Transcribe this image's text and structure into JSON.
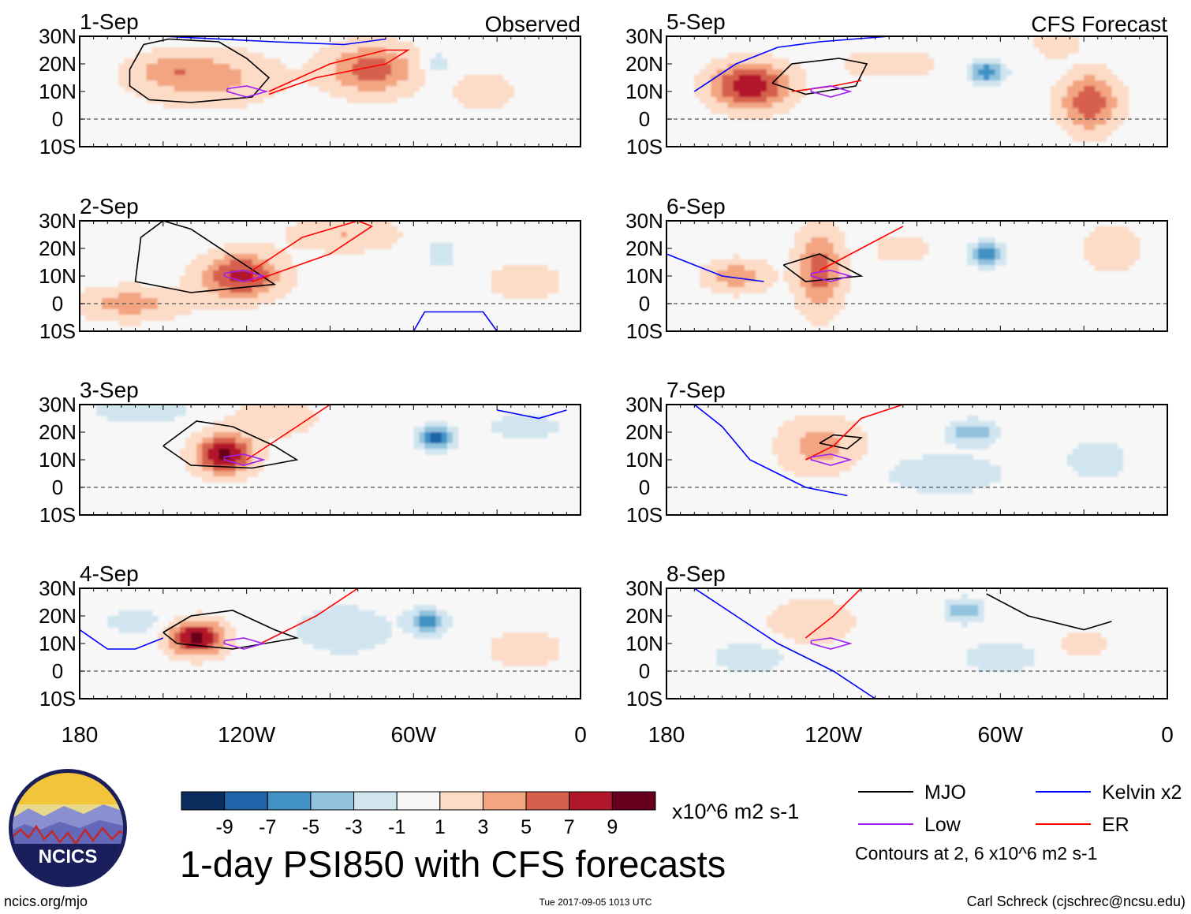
{
  "chart_data": {
    "type": "heatmap",
    "title": "1-day PSI850 with CFS forecasts",
    "variable": "PSI850",
    "units": "x10^6 m2 s-1",
    "columns": [
      {
        "heading": "Observed"
      },
      {
        "heading": "CFS Forecast"
      }
    ],
    "panels": [
      {
        "date": "1-Sep",
        "source": "Observed"
      },
      {
        "date": "2-Sep",
        "source": "Observed"
      },
      {
        "date": "3-Sep",
        "source": "Observed"
      },
      {
        "date": "4-Sep",
        "source": "Observed"
      },
      {
        "date": "5-Sep",
        "source": "CFS Forecast"
      },
      {
        "date": "6-Sep",
        "source": "CFS Forecast"
      },
      {
        "date": "7-Sep",
        "source": "CFS Forecast"
      },
      {
        "date": "8-Sep",
        "source": "CFS Forecast"
      }
    ],
    "x_axis": {
      "range": [
        -180,
        0
      ],
      "ticks": [
        -180,
        -120,
        -60,
        0
      ],
      "tick_labels": [
        "180",
        "120W",
        "60W",
        "0"
      ]
    },
    "y_axis": {
      "range": [
        -10,
        30
      ],
      "ticks": [
        30,
        20,
        10,
        0,
        -10
      ],
      "tick_labels": [
        "30N",
        "20N",
        "10N",
        "0",
        "10S"
      ]
    },
    "colorbar": {
      "levels": [
        -9,
        -7,
        -5,
        -3,
        -1,
        1,
        3,
        5,
        7,
        9
      ],
      "labels": [
        "-9",
        "-7",
        "-5",
        "-3",
        "-1",
        "1",
        "3",
        "5",
        "7",
        "9"
      ],
      "colors": [
        "#0b2d5e",
        "#1f63a8",
        "#4291c4",
        "#91c2de",
        "#d1e5f0",
        "#f7f7f7",
        "#fcdbc7",
        "#f3a481",
        "#d6604d",
        "#b2182b",
        "#67001f"
      ]
    },
    "legend": [
      {
        "label": "MJO",
        "color": "#000000"
      },
      {
        "label": "Kelvin x2",
        "color": "#0000ff"
      },
      {
        "label": "Low",
        "color": "#a020f0"
      },
      {
        "label": "ER",
        "color": "#ff0000"
      }
    ],
    "contour_note": "Contours at 2, 6 x10^6 m2 s-1",
    "anomaly_centers": [
      [
        [
          -75,
          18,
          6,
          16,
          9
        ],
        [
          -135,
          15,
          4,
          25,
          10
        ],
        [
          -35,
          10,
          3,
          10,
          6
        ],
        [
          -52,
          20,
          -3,
          5,
          4
        ],
        [
          -148,
          18,
          2,
          12,
          5
        ]
      ],
      [
        [
          -122,
          10,
          8,
          14,
          8
        ],
        [
          -162,
          0,
          4,
          20,
          6
        ],
        [
          -85,
          25,
          3,
          20,
          6
        ],
        [
          -50,
          18,
          -3,
          5,
          4
        ],
        [
          -20,
          8,
          2,
          15,
          8
        ]
      ],
      [
        [
          -128,
          12,
          10,
          10,
          7
        ],
        [
          -52,
          18,
          -8,
          6,
          4
        ],
        [
          -158,
          28,
          -2,
          20,
          5
        ],
        [
          -20,
          22,
          -2,
          15,
          5
        ],
        [
          -110,
          25,
          3,
          15,
          6
        ]
      ],
      [
        [
          -138,
          12,
          10,
          10,
          6
        ],
        [
          -55,
          18,
          -7,
          6,
          4
        ],
        [
          -85,
          15,
          -2,
          20,
          10
        ],
        [
          -20,
          8,
          3,
          12,
          6
        ],
        [
          -160,
          18,
          -2,
          12,
          5
        ]
      ],
      [
        [
          -150,
          12,
          9,
          14,
          8
        ],
        [
          -65,
          17,
          -7,
          6,
          4
        ],
        [
          -28,
          6,
          7,
          10,
          10
        ],
        [
          -100,
          20,
          2,
          20,
          6
        ],
        [
          -40,
          28,
          3,
          8,
          5
        ]
      ],
      [
        [
          -125,
          12,
          6,
          8,
          15
        ],
        [
          -155,
          10,
          4,
          12,
          6
        ],
        [
          -65,
          18,
          -6,
          6,
          4
        ],
        [
          -20,
          20,
          3,
          10,
          8
        ],
        [
          -95,
          20,
          2,
          12,
          6
        ]
      ],
      [
        [
          -125,
          15,
          4,
          15,
          10
        ],
        [
          -70,
          20,
          -5,
          8,
          4
        ],
        [
          -80,
          5,
          -2,
          25,
          8
        ],
        [
          -25,
          10,
          -2,
          12,
          8
        ],
        [
          -155,
          15,
          -1,
          12,
          6
        ]
      ],
      [
        [
          -128,
          18,
          3,
          15,
          8
        ],
        [
          -73,
          22,
          -5,
          6,
          4
        ],
        [
          -150,
          5,
          -2,
          15,
          6
        ],
        [
          -30,
          10,
          2,
          10,
          6
        ],
        [
          -60,
          5,
          -2,
          15,
          6
        ]
      ]
    ],
    "contour_paths": [
      {
        "panel": 0,
        "type": "MJO",
        "pts": [
          [
            -162,
            18
          ],
          [
            -157,
            27
          ],
          [
            -148,
            29
          ],
          [
            -130,
            28
          ],
          [
            -120,
            22
          ],
          [
            -112,
            15
          ],
          [
            -118,
            8
          ],
          [
            -140,
            6
          ],
          [
            -155,
            7
          ],
          [
            -162,
            12
          ],
          [
            -162,
            18
          ]
        ]
      },
      {
        "panel": 0,
        "type": "ER",
        "pts": [
          [
            -112,
            10
          ],
          [
            -90,
            20
          ],
          [
            -70,
            25
          ],
          [
            -62,
            25
          ],
          [
            -70,
            20
          ],
          [
            -95,
            15
          ],
          [
            -112,
            9
          ]
        ]
      },
      {
        "panel": 0,
        "type": "Kelvin x2",
        "pts": [
          [
            -150,
            30
          ],
          [
            -110,
            28
          ],
          [
            -85,
            27
          ],
          [
            -70,
            29
          ]
        ]
      },
      {
        "panel": 0,
        "type": "Low",
        "pts": [
          [
            -127,
            11
          ],
          [
            -120,
            12
          ],
          [
            -113,
            10
          ],
          [
            -120,
            8
          ],
          [
            -127,
            10
          ],
          [
            -127,
            11
          ]
        ]
      },
      {
        "panel": 1,
        "type": "MJO",
        "pts": [
          [
            -158,
            24
          ],
          [
            -150,
            30
          ],
          [
            -140,
            27
          ],
          [
            -125,
            17
          ],
          [
            -110,
            7
          ],
          [
            -140,
            4
          ],
          [
            -160,
            8
          ],
          [
            -158,
            24
          ]
        ]
      },
      {
        "panel": 1,
        "type": "ER",
        "pts": [
          [
            -118,
            8
          ],
          [
            -90,
            18
          ],
          [
            -75,
            28
          ],
          [
            -80,
            30
          ],
          [
            -100,
            24
          ],
          [
            -118,
            12
          ],
          [
            -118,
            8
          ]
        ]
      },
      {
        "panel": 1,
        "type": "Kelvin x2",
        "pts": [
          [
            -60,
            -10
          ],
          [
            -56,
            -3
          ],
          [
            -35,
            -3
          ],
          [
            -30,
            -10
          ]
        ]
      },
      {
        "panel": 1,
        "type": "Low",
        "pts": [
          [
            -128,
            11
          ],
          [
            -121,
            12
          ],
          [
            -114,
            10
          ],
          [
            -121,
            8
          ],
          [
            -128,
            10
          ],
          [
            -128,
            11
          ]
        ]
      },
      {
        "panel": 2,
        "type": "MJO",
        "pts": [
          [
            -150,
            15
          ],
          [
            -138,
            24
          ],
          [
            -125,
            22
          ],
          [
            -110,
            15
          ],
          [
            -102,
            10
          ],
          [
            -118,
            7
          ],
          [
            -140,
            8
          ],
          [
            -150,
            15
          ]
        ]
      },
      {
        "panel": 2,
        "type": "ER",
        "pts": [
          [
            -120,
            10
          ],
          [
            -105,
            20
          ],
          [
            -90,
            30
          ]
        ]
      },
      {
        "panel": 2,
        "type": "Kelvin x2",
        "pts": [
          [
            -30,
            28
          ],
          [
            -15,
            25
          ],
          [
            -5,
            28
          ]
        ]
      },
      {
        "panel": 2,
        "type": "Low",
        "pts": [
          [
            -128,
            11
          ],
          [
            -121,
            12
          ],
          [
            -114,
            10
          ],
          [
            -121,
            8
          ],
          [
            -128,
            10
          ],
          [
            -128,
            11
          ]
        ]
      },
      {
        "panel": 3,
        "type": "MJO",
        "pts": [
          [
            -150,
            14
          ],
          [
            -140,
            20
          ],
          [
            -125,
            22
          ],
          [
            -110,
            15
          ],
          [
            -102,
            12
          ],
          [
            -125,
            8
          ],
          [
            -145,
            10
          ],
          [
            -150,
            14
          ]
        ]
      },
      {
        "panel": 3,
        "type": "ER",
        "pts": [
          [
            -115,
            10
          ],
          [
            -95,
            20
          ],
          [
            -80,
            30
          ]
        ]
      },
      {
        "panel": 3,
        "type": "Kelvin x2",
        "pts": [
          [
            -180,
            15
          ],
          [
            -170,
            8
          ],
          [
            -160,
            8
          ],
          [
            -150,
            12
          ]
        ]
      },
      {
        "panel": 3,
        "type": "Low",
        "pts": [
          [
            -128,
            11
          ],
          [
            -121,
            12
          ],
          [
            -114,
            10
          ],
          [
            -121,
            8
          ],
          [
            -128,
            10
          ],
          [
            -128,
            11
          ]
        ]
      },
      {
        "panel": 4,
        "type": "MJO",
        "pts": [
          [
            -142,
            13
          ],
          [
            -135,
            20
          ],
          [
            -118,
            22
          ],
          [
            -108,
            20
          ],
          [
            -112,
            12
          ],
          [
            -130,
            9
          ],
          [
            -142,
            13
          ]
        ]
      },
      {
        "panel": 4,
        "type": "ER",
        "pts": [
          [
            -135,
            10
          ],
          [
            -120,
            12
          ],
          [
            -110,
            14
          ]
        ]
      },
      {
        "panel": 4,
        "type": "Kelvin x2",
        "pts": [
          [
            -170,
            10
          ],
          [
            -155,
            20
          ],
          [
            -140,
            26
          ],
          [
            -125,
            28
          ],
          [
            -100,
            30
          ]
        ]
      },
      {
        "panel": 4,
        "type": "Low",
        "pts": [
          [
            -128,
            11
          ],
          [
            -121,
            12
          ],
          [
            -114,
            10
          ],
          [
            -121,
            8
          ],
          [
            -128,
            10
          ],
          [
            -128,
            11
          ]
        ]
      },
      {
        "panel": 5,
        "type": "MJO",
        "pts": [
          [
            -138,
            14
          ],
          [
            -125,
            18
          ],
          [
            -110,
            10
          ],
          [
            -130,
            8
          ],
          [
            -138,
            14
          ]
        ]
      },
      {
        "panel": 5,
        "type": "ER",
        "pts": [
          [
            -125,
            12
          ],
          [
            -110,
            20
          ],
          [
            -95,
            28
          ]
        ]
      },
      {
        "panel": 5,
        "type": "Kelvin x2",
        "pts": [
          [
            -180,
            18
          ],
          [
            -160,
            10
          ],
          [
            -145,
            8
          ]
        ]
      },
      {
        "panel": 5,
        "type": "Low",
        "pts": [
          [
            -128,
            11
          ],
          [
            -121,
            12
          ],
          [
            -114,
            10
          ],
          [
            -121,
            8
          ],
          [
            -128,
            10
          ],
          [
            -128,
            11
          ]
        ]
      },
      {
        "panel": 6,
        "type": "MJO",
        "pts": [
          [
            -125,
            16
          ],
          [
            -120,
            19
          ],
          [
            -110,
            18
          ],
          [
            -115,
            14
          ],
          [
            -125,
            16
          ]
        ]
      },
      {
        "panel": 6,
        "type": "ER",
        "pts": [
          [
            -130,
            10
          ],
          [
            -120,
            15
          ],
          [
            -110,
            25
          ],
          [
            -95,
            30
          ]
        ]
      },
      {
        "panel": 6,
        "type": "Kelvin x2",
        "pts": [
          [
            -170,
            30
          ],
          [
            -160,
            22
          ],
          [
            -150,
            10
          ],
          [
            -140,
            5
          ],
          [
            -130,
            0
          ],
          [
            -115,
            -3
          ]
        ]
      },
      {
        "panel": 6,
        "type": "Low",
        "pts": [
          [
            -128,
            11
          ],
          [
            -121,
            12
          ],
          [
            -114,
            10
          ],
          [
            -121,
            8
          ],
          [
            -128,
            10
          ],
          [
            -128,
            11
          ]
        ]
      },
      {
        "panel": 7,
        "type": "MJO",
        "pts": [
          [
            -65,
            28
          ],
          [
            -50,
            20
          ],
          [
            -30,
            15
          ],
          [
            -20,
            18
          ]
        ]
      },
      {
        "panel": 7,
        "type": "ER",
        "pts": [
          [
            -130,
            12
          ],
          [
            -120,
            20
          ],
          [
            -110,
            30
          ]
        ]
      },
      {
        "panel": 7,
        "type": "Kelvin x2",
        "pts": [
          [
            -170,
            30
          ],
          [
            -155,
            20
          ],
          [
            -140,
            10
          ],
          [
            -120,
            0
          ],
          [
            -105,
            -10
          ]
        ]
      },
      {
        "panel": 7,
        "type": "Low",
        "pts": [
          [
            -128,
            11
          ],
          [
            -121,
            12
          ],
          [
            -114,
            10
          ],
          [
            -121,
            8
          ],
          [
            -128,
            10
          ],
          [
            -128,
            11
          ]
        ]
      }
    ]
  },
  "footer": {
    "logo_text": "NCICS",
    "url": "ncics.org/mjo",
    "timestamp": "Tue 2017-09-05 1013 UTC",
    "credit": "Carl Schreck (cjschrec@ncsu.edu)"
  }
}
